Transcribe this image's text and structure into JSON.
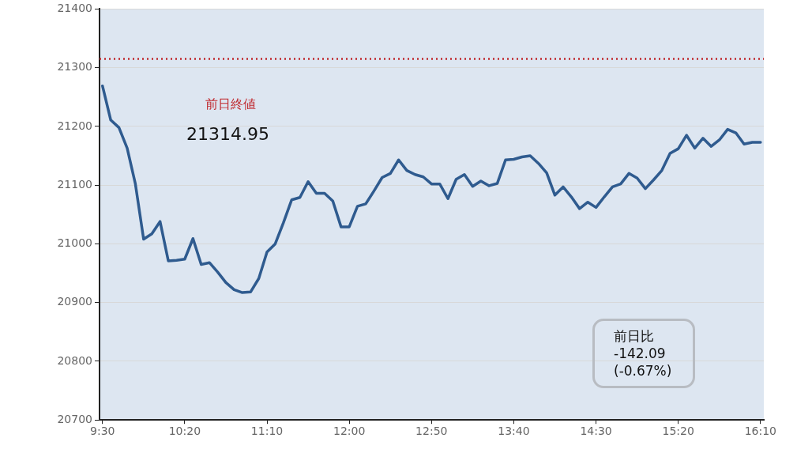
{
  "chart_data": {
    "type": "line",
    "x": [
      9.5,
      9.5833,
      9.6667,
      9.75,
      9.8333,
      9.9167,
      10,
      10.0833,
      10.1667,
      10.25,
      10.3333,
      10.4167,
      10.5,
      10.5833,
      10.6667,
      10.75,
      10.8333,
      10.9167,
      11,
      11.0833,
      11.1667,
      11.25,
      11.3333,
      11.4167,
      11.5,
      11.5833,
      11.6667,
      11.75,
      11.8333,
      11.9167,
      12,
      12.0833,
      12.1667,
      12.25,
      12.3333,
      12.4167,
      12.5,
      12.5833,
      12.6667,
      12.75,
      12.8333,
      12.9167,
      13,
      13.0833,
      13.1667,
      13.25,
      13.3333,
      13.4167,
      13.5,
      13.5833,
      13.6667,
      13.75,
      13.8333,
      13.9167,
      14,
      14.0833,
      14.1667,
      14.25,
      14.3333,
      14.4167,
      14.5,
      14.5833,
      14.6667,
      14.75,
      14.8333,
      14.9167,
      15,
      15.0833,
      15.1667,
      15.25,
      15.3333,
      15.4167,
      15.5,
      15.5833,
      15.6667,
      15.75,
      15.8333,
      15.9167,
      16,
      16.0833,
      16.1667
    ],
    "series": [
      {
        "color": "#2f5b8f",
        "values": [
          21269,
          21211,
          21198,
          21163,
          21102,
          21008,
          21017,
          21038,
          20971,
          20972,
          20974,
          21009,
          20965,
          20968,
          20952,
          20934,
          20922,
          20917,
          20918,
          20941,
          20986,
          21000,
          21036,
          21075,
          21079,
          21106,
          21086,
          21086,
          21073,
          21029,
          21029,
          21064,
          21068,
          21090,
          21113,
          21120,
          21143,
          21125,
          21118,
          21114,
          21102,
          21102,
          21077,
          21110,
          21118,
          21098,
          21107,
          21099,
          21103,
          21143,
          21144,
          21148,
          21150,
          21137,
          21121,
          21083,
          21097,
          21080,
          21060,
          21071,
          21062,
          21080,
          21097,
          21102,
          21120,
          21112,
          21094,
          21109,
          21125,
          21154,
          21162,
          21185,
          21163,
          21180,
          21166,
          21177,
          21195,
          21189,
          21170,
          21173,
          21173
        ]
      }
    ],
    "xlim": [
      9.47,
      16.2
    ],
    "xticks": [
      {
        "value": 9.5,
        "label": "9:30"
      },
      {
        "value": 10.3333,
        "label": "10:20"
      },
      {
        "value": 11.1667,
        "label": "11:10"
      },
      {
        "value": 12,
        "label": "12:00"
      },
      {
        "value": 12.8333,
        "label": "12:50"
      },
      {
        "value": 13.6667,
        "label": "13:40"
      },
      {
        "value": 14.5,
        "label": "14:30"
      },
      {
        "value": 15.3333,
        "label": "15:20"
      },
      {
        "value": 16.1667,
        "label": "16:10"
      }
    ],
    "ylim": [
      20700,
      21400
    ],
    "yticks": [
      20700,
      20800,
      20900,
      21000,
      21100,
      21200,
      21300,
      21400
    ],
    "grid": "y",
    "marker": "none",
    "line_style": "solid",
    "ref_lines": [
      {
        "axis": "y",
        "value": 21314.95,
        "label": "前日終値",
        "color": "#c0282d",
        "line_style": "dotted"
      }
    ],
    "annotations": [
      "21314.95",
      "前日比\n-142.09\n(-0.67%)"
    ]
  }
}
